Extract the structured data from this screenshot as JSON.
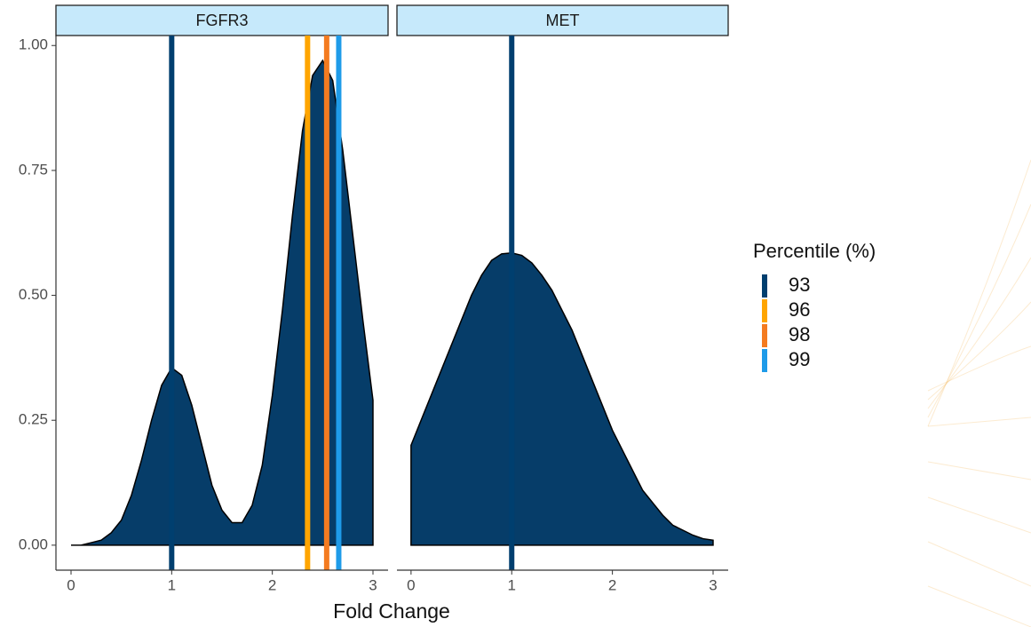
{
  "chart_data": {
    "type": "density",
    "xlabel": "Fold Change",
    "legend_title": "Percentile (%)",
    "fill": "#063d69",
    "percentiles": [
      {
        "name": "93",
        "color": "#003f6f"
      },
      {
        "name": "96",
        "color": "#ffa500"
      },
      {
        "name": "98",
        "color": "#f47b20"
      },
      {
        "name": "99",
        "color": "#1e9be9"
      }
    ],
    "ylim": [
      -0.05,
      1.02
    ],
    "yticks": [
      {
        "value": 0,
        "label": "0.00"
      },
      {
        "value": 0.25,
        "label": "0.25"
      },
      {
        "value": 0.5,
        "label": "0.50"
      },
      {
        "value": 0.75,
        "label": "0.75"
      },
      {
        "value": 1,
        "label": "1.00"
      }
    ],
    "panels": [
      {
        "title": "FGFR3",
        "xlim": [
          -0.15,
          3.15
        ],
        "xticks": [
          0,
          1,
          2,
          3
        ],
        "x": [
          0,
          0.1,
          0.2,
          0.3,
          0.4,
          0.5,
          0.6,
          0.7,
          0.8,
          0.9,
          1,
          1.1,
          1.2,
          1.3,
          1.4,
          1.5,
          1.6,
          1.7,
          1.8,
          1.9,
          2,
          2.1,
          2.2,
          2.3,
          2.4,
          2.5,
          2.6,
          2.7,
          2.8,
          2.9,
          3
        ],
        "values": [
          0,
          0,
          0.005,
          0.01,
          0.025,
          0.05,
          0.1,
          0.17,
          0.25,
          0.32,
          0.355,
          0.34,
          0.28,
          0.2,
          0.12,
          0.07,
          0.045,
          0.045,
          0.08,
          0.16,
          0.3,
          0.47,
          0.66,
          0.83,
          0.94,
          0.97,
          0.93,
          0.79,
          0.62,
          0.45,
          0.29
        ],
        "vlines": [
          1,
          2.35,
          2.54,
          2.66
        ]
      },
      {
        "title": "MET",
        "xlim": [
          -0.14,
          3.15
        ],
        "xticks": [
          0,
          1,
          2,
          3
        ],
        "x": [
          0,
          0.1,
          0.2,
          0.3,
          0.4,
          0.5,
          0.6,
          0.7,
          0.8,
          0.9,
          1,
          1.1,
          1.2,
          1.3,
          1.4,
          1.5,
          1.6,
          1.7,
          1.8,
          1.9,
          2,
          2.1,
          2.2,
          2.3,
          2.4,
          2.5,
          2.6,
          2.7,
          2.8,
          2.9,
          3
        ],
        "values": [
          0.2,
          0.25,
          0.3,
          0.35,
          0.4,
          0.45,
          0.5,
          0.54,
          0.57,
          0.583,
          0.585,
          0.58,
          0.565,
          0.54,
          0.51,
          0.47,
          0.43,
          0.38,
          0.33,
          0.28,
          0.23,
          0.19,
          0.15,
          0.11,
          0.085,
          0.06,
          0.04,
          0.03,
          0.02,
          0.013,
          0.01
        ],
        "vlines": [
          1
        ]
      }
    ]
  }
}
